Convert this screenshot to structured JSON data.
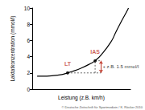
{
  "chart_data": {
    "type": "line",
    "x_label": "Leistung (z.B. km/h)",
    "y_label": "Laktatkonzentration (mmol/l)",
    "x": [
      0.5,
      1,
      2,
      3,
      3.6,
      4,
      5,
      6,
      6.4,
      7,
      8,
      8.5,
      9,
      9.5,
      9.8
    ],
    "values": [
      1.6,
      1.6,
      1.65,
      1.8,
      2.0,
      2.15,
      2.6,
      3.2,
      3.5,
      4.2,
      5.8,
      7.0,
      8.2,
      9.3,
      10.0
    ],
    "color": "#000000",
    "xlim": [
      0,
      10
    ],
    "ylim": [
      0,
      10
    ],
    "yticks": [
      0,
      2,
      4,
      6,
      8,
      10
    ],
    "tick_labels": "y",
    "grid": false,
    "points": [
      {
        "label": "LT",
        "x": 3.6,
        "y": 2.0
      },
      {
        "label": "IAS",
        "x": 6.4,
        "y": 3.5
      }
    ],
    "points_label_color": "#c0392b",
    "annotation": {
      "text": "+ z.B. 1.5 mmol/l",
      "x": 7.0,
      "y_from": 2.0,
      "y_to": 3.5,
      "color": "#c0392b"
    },
    "source": "© Deutsche Zeitschrift für Sportmedizin / K. Röcker 2010"
  }
}
